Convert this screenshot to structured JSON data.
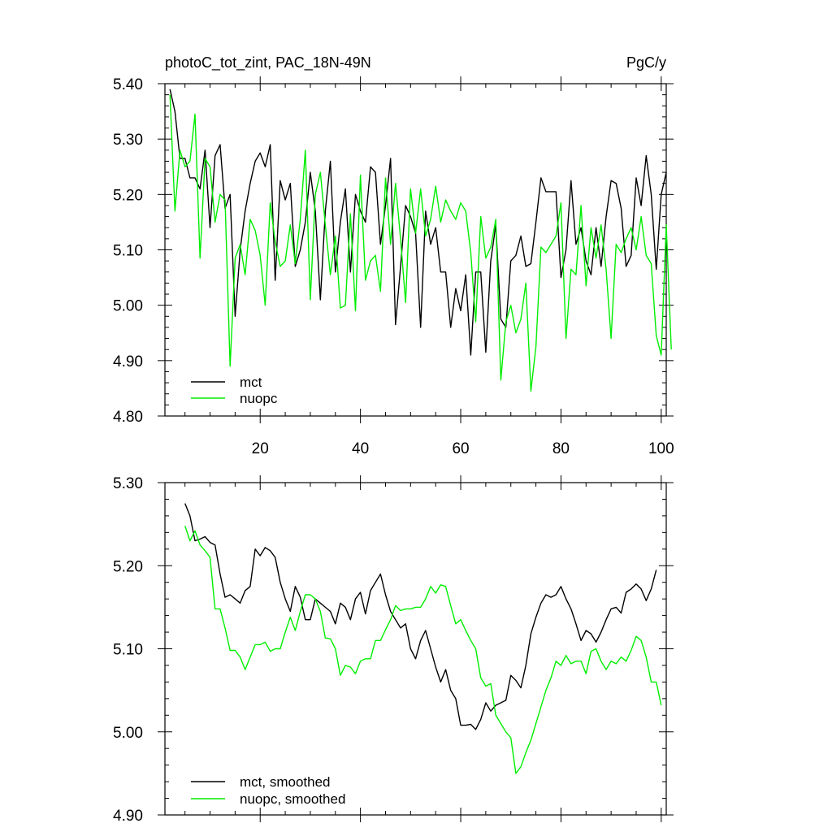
{
  "chart_data": [
    {
      "type": "line",
      "title": "photoC_tot_zint, PAC_18N-49N",
      "units": "PgC/y",
      "xlim": [
        1,
        101
      ],
      "ylim": [
        4.8,
        5.4
      ],
      "xticks": [
        20,
        40,
        60,
        80,
        100
      ],
      "xtick_labels": [
        "20",
        "40",
        "60",
        "80",
        "100"
      ],
      "yticks": [
        4.8,
        4.9,
        5.0,
        5.1,
        5.2,
        5.3,
        5.4
      ],
      "ytick_labels": [
        "4.80",
        "4.90",
        "5.00",
        "5.10",
        "5.20",
        "5.30",
        "5.40"
      ],
      "legend_position": "bottom-left",
      "x_start": 2,
      "series": [
        {
          "name": "mct",
          "color": "#000000",
          "values": [
            5.39,
            5.35,
            5.265,
            5.265,
            5.23,
            5.23,
            5.21,
            5.28,
            5.14,
            5.27,
            5.29,
            5.175,
            5.2,
            4.98,
            5.1,
            5.17,
            5.22,
            5.26,
            5.275,
            5.25,
            5.29,
            5.045,
            5.225,
            5.19,
            5.22,
            5.07,
            5.1,
            5.15,
            5.24,
            5.17,
            5.01,
            5.17,
            5.26,
            5.06,
            5.15,
            5.21,
            5.06,
            5.2,
            5.17,
            5.15,
            5.25,
            5.24,
            5.11,
            5.18,
            5.265,
            4.965,
            5.07,
            5.18,
            5.16,
            5.13,
            4.96,
            5.17,
            5.11,
            5.14,
            5.06,
            5.06,
            4.96,
            5.03,
            4.99,
            5.055,
            4.91,
            5.06,
            5.06,
            4.915,
            5.08,
            5.145,
            4.975,
            4.96,
            5.08,
            5.09,
            5.125,
            5.07,
            5.075,
            5.15,
            5.23,
            5.205,
            5.205,
            5.205,
            5.05,
            5.1,
            5.225,
            5.11,
            5.14,
            5.08,
            5.055,
            5.14,
            5.07,
            5.16,
            5.225,
            5.22,
            5.175,
            5.07,
            5.09,
            5.23,
            5.18,
            5.27,
            5.2,
            5.065,
            5.2,
            5.24
          ]
        },
        {
          "name": "nuopc",
          "color": "#00ee00",
          "values": [
            5.38,
            5.17,
            5.28,
            5.25,
            5.26,
            5.345,
            5.085,
            5.265,
            5.25,
            5.15,
            5.2,
            5.19,
            4.89,
            5.085,
            5.11,
            5.055,
            5.155,
            5.135,
            5.09,
            5.0,
            5.185,
            5.115,
            5.07,
            5.08,
            5.145,
            5.075,
            5.155,
            5.28,
            5.01,
            5.2,
            5.24,
            5.145,
            5.055,
            5.125,
            4.995,
            5.0,
            5.165,
            4.99,
            5.235,
            5.045,
            5.08,
            5.09,
            5.025,
            5.23,
            5.11,
            5.22,
            5.12,
            5.005,
            5.21,
            5.13,
            5.21,
            5.125,
            5.155,
            5.215,
            5.15,
            5.19,
            5.17,
            5.155,
            5.185,
            5.17,
            5.095,
            4.97,
            5.16,
            5.085,
            5.105,
            5.155,
            4.865,
            4.97,
            5.0,
            4.95,
            4.975,
            5.04,
            4.845,
            4.925,
            5.105,
            5.095,
            5.11,
            5.125,
            5.185,
            4.94,
            5.065,
            5.055,
            5.18,
            5.035,
            5.14,
            5.085,
            5.145,
            5.065,
            4.94,
            5.11,
            5.095,
            5.12,
            5.14,
            5.1,
            5.16,
            5.09,
            5.075,
            4.945,
            4.91,
            5.145,
            4.92
          ]
        }
      ]
    },
    {
      "type": "line",
      "title": "",
      "xlim": [
        1,
        101
      ],
      "ylim": [
        4.9,
        5.3
      ],
      "xticks": [
        20,
        40,
        60,
        80,
        100
      ],
      "yticks": [
        4.9,
        5.0,
        5.1,
        5.2,
        5.3
      ],
      "ytick_labels": [
        "4.90",
        "5.00",
        "5.10",
        "5.20",
        "5.30"
      ],
      "legend_position": "bottom-left",
      "x_start": 5,
      "series": [
        {
          "name": "mct, smoothed",
          "color": "#000000",
          "values": [
            5.275,
            5.26,
            5.23,
            5.232,
            5.235,
            5.228,
            5.225,
            5.19,
            5.162,
            5.165,
            5.16,
            5.155,
            5.17,
            5.175,
            5.22,
            5.212,
            5.222,
            5.218,
            5.21,
            5.18,
            5.16,
            5.145,
            5.175,
            5.162,
            5.135,
            5.135,
            5.16,
            5.155,
            5.15,
            5.145,
            5.13,
            5.155,
            5.15,
            5.135,
            5.16,
            5.168,
            5.142,
            5.17,
            5.18,
            5.19,
            5.165,
            5.145,
            5.135,
            5.125,
            5.13,
            5.1,
            5.088,
            5.11,
            5.122,
            5.1,
            5.078,
            5.06,
            5.075,
            5.05,
            5.04,
            5.008,
            5.008,
            5.009,
            5.003,
            5.015,
            5.035,
            5.025,
            5.032,
            5.035,
            5.038,
            5.068,
            5.062,
            5.053,
            5.08,
            5.118,
            5.138,
            5.155,
            5.165,
            5.162,
            5.165,
            5.175,
            5.16,
            5.148,
            5.13,
            5.11,
            5.122,
            5.118,
            5.108,
            5.12,
            5.135,
            5.148,
            5.15,
            5.143,
            5.168,
            5.172,
            5.178,
            5.172,
            5.158,
            5.172,
            5.195
          ]
        },
        {
          "name": "nuopc, smoothed",
          "color": "#00ee00",
          "values": [
            5.248,
            5.23,
            5.242,
            5.225,
            5.218,
            5.21,
            5.148,
            5.148,
            5.125,
            5.098,
            5.098,
            5.09,
            5.075,
            5.09,
            5.105,
            5.105,
            5.108,
            5.097,
            5.1,
            5.1,
            5.12,
            5.138,
            5.122,
            5.145,
            5.165,
            5.165,
            5.16,
            5.145,
            5.113,
            5.112,
            5.1,
            5.068,
            5.08,
            5.078,
            5.07,
            5.085,
            5.088,
            5.088,
            5.11,
            5.11,
            5.123,
            5.135,
            5.152,
            5.146,
            5.148,
            5.148,
            5.15,
            5.15,
            5.16,
            5.175,
            5.167,
            5.177,
            5.175,
            5.152,
            5.13,
            5.135,
            5.122,
            5.11,
            5.1,
            5.065,
            5.055,
            5.058,
            5.02,
            5.01,
            5.0,
            4.993,
            4.95,
            4.958,
            4.975,
            4.99,
            5.01,
            5.03,
            5.05,
            5.065,
            5.085,
            5.08,
            5.092,
            5.082,
            5.085,
            5.085,
            5.07,
            5.097,
            5.1,
            5.085,
            5.075,
            5.085,
            5.082,
            5.09,
            5.085,
            5.098,
            5.115,
            5.11,
            5.09,
            5.06,
            5.06,
            5.032
          ]
        }
      ]
    }
  ]
}
